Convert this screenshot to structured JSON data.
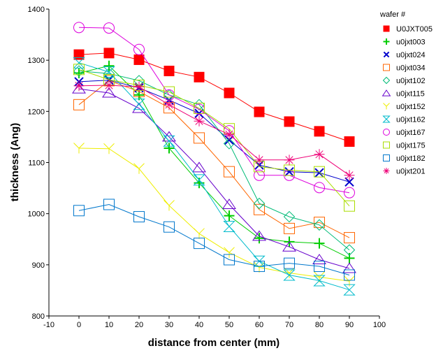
{
  "chart_data": {
    "type": "line",
    "title": "",
    "xlabel": "distance from center (mm)",
    "ylabel": "thickness (Ang)",
    "xlim": [
      -10,
      100
    ],
    "ylim": [
      800,
      1400
    ],
    "xticks": [
      -10,
      0,
      10,
      20,
      30,
      40,
      50,
      60,
      70,
      80,
      90,
      100
    ],
    "yticks": [
      800,
      900,
      1000,
      1100,
      1200,
      1300,
      1400
    ],
    "grid": false,
    "legend_title": "wafer #",
    "legend_position": "right",
    "x": [
      0,
      10,
      20,
      30,
      40,
      50,
      60,
      70,
      80,
      90
    ],
    "series": [
      {
        "name": "U0JXT005",
        "color": "#ff0000",
        "marker": "square-filled",
        "values": [
          1311,
          1314,
          1301,
          1279,
          1267,
          1236,
          1199,
          1180,
          1161,
          1141
        ]
      },
      {
        "name": "u0jxt003",
        "color": "#00cc00",
        "marker": "plus",
        "values": [
          1275,
          1289,
          1232,
          1128,
          1060,
          996,
          952,
          945,
          942,
          913
        ]
      },
      {
        "name": "u0jxt024",
        "color": "#0000cc",
        "marker": "x",
        "values": [
          1258,
          1261,
          1246,
          1222,
          1196,
          1144,
          1095,
          1082,
          1080,
          1062
        ]
      },
      {
        "name": "u0jxt034",
        "color": "#ff6600",
        "marker": "square-open",
        "values": [
          1213,
          1260,
          1239,
          1207,
          1148,
          1082,
          1008,
          971,
          983,
          953
        ]
      },
      {
        "name": "u0jxt102",
        "color": "#00bb77",
        "marker": "diamond-open",
        "values": [
          1279,
          1274,
          1260,
          1232,
          1213,
          1137,
          1020,
          994,
          978,
          929
        ]
      },
      {
        "name": "u0jxt115",
        "color": "#6600cc",
        "marker": "triangle-open",
        "values": [
          1244,
          1236,
          1206,
          1150,
          1090,
          1018,
          956,
          935,
          910,
          893
        ]
      },
      {
        "name": "u0jxt152",
        "color": "#eeee00",
        "marker": "y",
        "values": [
          1128,
          1127,
          1088,
          1016,
          961,
          924,
          895,
          884,
          876,
          868
        ]
      },
      {
        "name": "u0jxt162",
        "color": "#00bbcc",
        "marker": "hourglass",
        "values": [
          1295,
          1277,
          1214,
          1142,
          1066,
          975,
          907,
          880,
          869,
          851
        ]
      },
      {
        "name": "u0jxt167",
        "color": "#dd00dd",
        "marker": "circle-open",
        "values": [
          1364,
          1363,
          1321,
          1232,
          1204,
          1162,
          1075,
          1075,
          1051,
          1041
        ]
      },
      {
        "name": "u0jxt175",
        "color": "#aadd00",
        "marker": "square-open",
        "values": [
          1282,
          1262,
          1251,
          1238,
          1206,
          1166,
          1092,
          1085,
          1082,
          1015
        ]
      },
      {
        "name": "u0jxt182",
        "color": "#0077cc",
        "marker": "square-open",
        "values": [
          1006,
          1018,
          994,
          974,
          942,
          910,
          897,
          903,
          897,
          880
        ]
      },
      {
        "name": "u0jxt201",
        "color": "#ee0077",
        "marker": "asterisk",
        "values": [
          1250,
          1251,
          1248,
          1213,
          1181,
          1155,
          1105,
          1105,
          1116,
          1075
        ]
      }
    ]
  }
}
